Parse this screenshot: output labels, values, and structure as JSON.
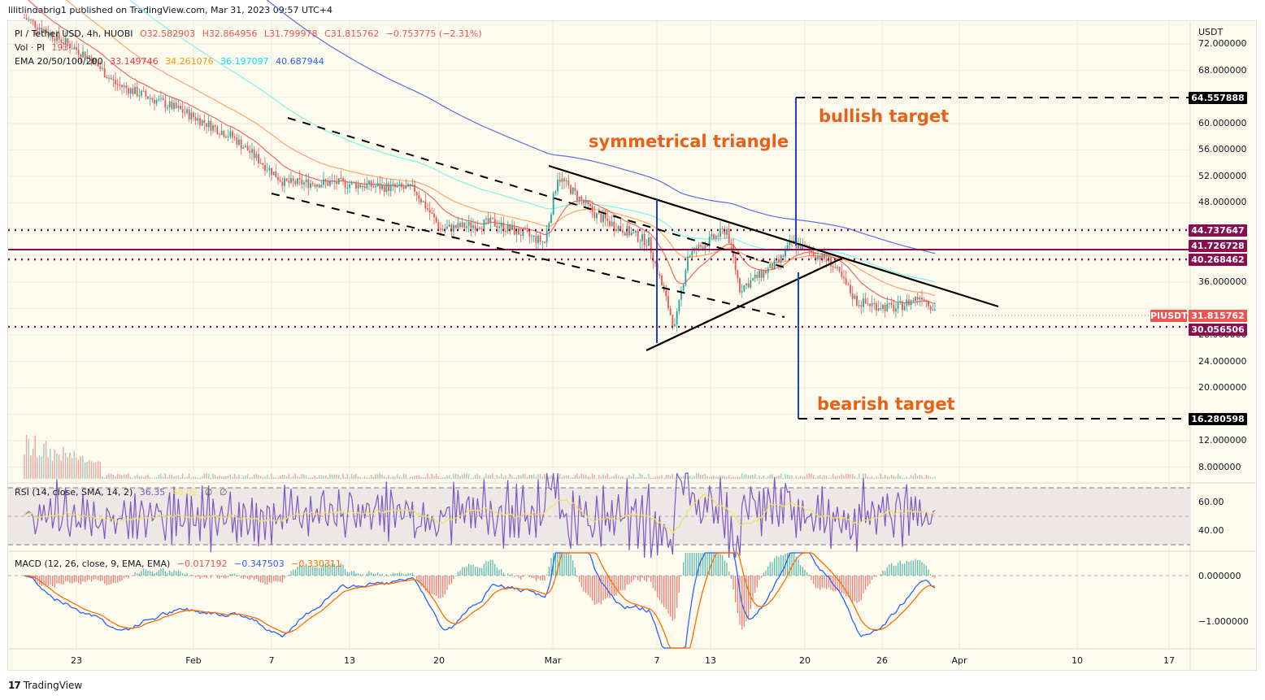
{
  "header": {
    "published": "lilitlindabrig1 published on TradingView.com, Mar 31, 2023 09:57 UTC+4"
  },
  "legend": {
    "symbol": "PI / Tether USD, 4h, HUOBI",
    "open": "O32.582903",
    "high": "H32.864956",
    "low": "L31.799978",
    "close": "C31.815762",
    "change": "−0.753775 (−2.31%)",
    "vol_label": "Vol · PI",
    "vol_value": "193",
    "ema_label": "EMA 20/50/100/200",
    "ema20": "33.149746",
    "ema50": "34.261076",
    "ema100": "36.197097",
    "ema200": "40.687944",
    "rsi_label": "RSI (14, close, SMA, 14, 2)",
    "rsi_value": "36.35",
    "rsi_sma": "46.02",
    "rsi_na1": "∅",
    "rsi_na2": "∅",
    "macd_label": "MACD (12, 26, close, 9, EMA, EMA)",
    "macd_hist": "−0.017192",
    "macd_line": "−0.347503",
    "macd_signal": "−0.330311"
  },
  "annotations": {
    "triangle": "symmetrical triangle",
    "bullish": "bullish target",
    "bearish": "bearish target"
  },
  "price_axis": {
    "currency": "USDT",
    "ticks": [
      "72.000000",
      "68.000000",
      "64.000000",
      "60.000000",
      "56.000000",
      "52.000000",
      "48.000000",
      "44.000000",
      "40.000000",
      "36.000000",
      "32.000000",
      "28.000000",
      "24.000000",
      "20.000000",
      "16.000000",
      "12.000000",
      "8.000000"
    ],
    "labels": [
      {
        "value": "64.557888",
        "color": "#000000"
      },
      {
        "value": "44.737647",
        "color": "#880e4f"
      },
      {
        "value": "41.726728",
        "color": "#880e4f"
      },
      {
        "value": "40.268462",
        "color": "#880e4f"
      },
      {
        "value": "31.815762",
        "color": "#ef5350",
        "tag": "PIUSDT"
      },
      {
        "value": "30.056506",
        "color": "#880e4f"
      },
      {
        "value": "16.280598",
        "color": "#000000"
      }
    ]
  },
  "rsi_axis": {
    "ticks": [
      "60.00",
      "40.00"
    ]
  },
  "macd_axis": {
    "ticks": [
      "0.000000",
      "−1.000000"
    ]
  },
  "time_axis": {
    "ticks": [
      "23",
      "Feb",
      "7",
      "13",
      "20",
      "Mar",
      "7",
      "13",
      "20",
      "26",
      "Apr",
      "10",
      "17"
    ]
  },
  "footer": {
    "brand": "TradingView",
    "logo": "17"
  },
  "colors": {
    "ema20": "#f23645",
    "ema50": "#ff9800",
    "ema100": "#00e5ff",
    "ema200": "#2962ff",
    "up": "#26a69a",
    "down": "#ef5350",
    "level": "#880e4f",
    "annotation": "#e8601a",
    "target_line": "#1e40c8"
  },
  "chart_data": {
    "type": "candlestick",
    "title": "PI / Tether USD, 4h, HUOBI",
    "xlabel": "",
    "ylabel": "USDT",
    "x_ticks": [
      "23 Jan",
      "Feb",
      "7 Feb",
      "13 Feb",
      "20 Feb",
      "Mar",
      "7 Mar",
      "13 Mar",
      "20 Mar",
      "26 Mar",
      "Apr",
      "10 Apr",
      "17 Apr"
    ],
    "ylim": [
      6,
      75
    ],
    "last": {
      "open": 32.582903,
      "high": 32.864956,
      "low": 31.799978,
      "close": 31.815762,
      "change": -0.753775,
      "change_pct": -2.31
    },
    "approx_close_path": [
      {
        "date": "Jan 20",
        "price": 76
      },
      {
        "date": "Jan 25",
        "price": 70
      },
      {
        "date": "Jan 27",
        "price": 66
      },
      {
        "date": "Feb 1",
        "price": 62
      },
      {
        "date": "Feb 5",
        "price": 58
      },
      {
        "date": "Feb 9",
        "price": 51
      },
      {
        "date": "Feb 13",
        "price": 51
      },
      {
        "date": "Feb 19",
        "price": 50
      },
      {
        "date": "Feb 21",
        "price": 44
      },
      {
        "date": "Feb 25",
        "price": 45
      },
      {
        "date": "Mar 1",
        "price": 42
      },
      {
        "date": "Mar 2",
        "price": 52
      },
      {
        "date": "Mar 5",
        "price": 46
      },
      {
        "date": "Mar 9",
        "price": 42
      },
      {
        "date": "Mar 11",
        "price": 29
      },
      {
        "date": "Mar 12",
        "price": 40
      },
      {
        "date": "Mar 15",
        "price": 44
      },
      {
        "date": "Mar 16",
        "price": 35
      },
      {
        "date": "Mar 19",
        "price": 39
      },
      {
        "date": "Mar 20",
        "price": 42
      },
      {
        "date": "Mar 23",
        "price": 39
      },
      {
        "date": "Mar 25",
        "price": 33
      },
      {
        "date": "Mar 28",
        "price": 32
      },
      {
        "date": "Mar 30",
        "price": 34
      },
      {
        "date": "Mar 31",
        "price": 31.82
      }
    ],
    "indicators": {
      "EMA20": 33.149746,
      "EMA50": 34.261076,
      "EMA100": 36.197097,
      "EMA200": 40.687944,
      "RSI": 36.35,
      "RSI_SMA": 46.02,
      "MACD_hist": -0.017192,
      "MACD": -0.347503,
      "MACD_signal": -0.330311
    },
    "horizontal_levels": [
      44.737647,
      41.726728,
      40.268462,
      30.056506
    ],
    "targets": {
      "bullish": 64.557888,
      "bearish": 16.280598
    },
    "patterns": [
      "descending channel",
      "symmetrical triangle"
    ],
    "annotations": [
      "symmetrical triangle",
      "bullish target",
      "bearish target"
    ]
  }
}
